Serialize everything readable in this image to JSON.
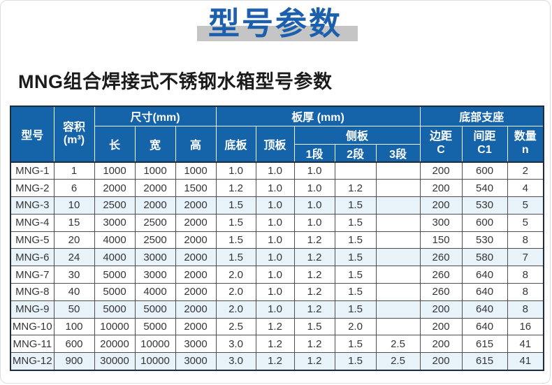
{
  "page": {
    "title": "型号参数",
    "subtitle": "MNG组合焊接式不锈钢水箱型号参数"
  },
  "colors": {
    "title_blue": "#1c5fad",
    "title_shadow_gray": "#c5c5c5",
    "header_blue": "#1563a9",
    "alt_row_tint": "#e8f2f9",
    "grid_line": "#4e4e4e",
    "outer_border": "#1e2c3f"
  },
  "table": {
    "header": {
      "model": "型号",
      "volume_l1": "容积",
      "volume_l2": "(m³)",
      "size_group": "尺寸(mm)",
      "len": "长",
      "wid": "宽",
      "hei": "高",
      "thickness_group": "板厚 (mm)",
      "bottom_plate": "底板",
      "top_plate": "顶板",
      "side_plate": "侧板",
      "seg1": "1段",
      "seg2": "2段",
      "seg3": "3段",
      "support_group": "底部支座",
      "edge_l1": "边距",
      "edge_l2": "C",
      "spacing_l1": "间距",
      "spacing_l2": "C1",
      "qty_l1": "数量",
      "qty_l2": "n"
    },
    "rows": [
      [
        "MNG-1",
        "1",
        "1000",
        "1000",
        "1000",
        "1.0",
        "1.0",
        "1.0",
        "",
        "",
        "200",
        "600",
        "2"
      ],
      [
        "MNG-2",
        "6",
        "2000",
        "2000",
        "1500",
        "1.2",
        "1.0",
        "1.0",
        "1.2",
        "",
        "200",
        "540",
        "4"
      ],
      [
        "MNG-3",
        "10",
        "2500",
        "2000",
        "2000",
        "1.5",
        "1.0",
        "1.0",
        "1.5",
        "",
        "200",
        "530",
        "5"
      ],
      [
        "MNG-4",
        "15",
        "3000",
        "2500",
        "2000",
        "1.5",
        "1.0",
        "1.0",
        "1.5",
        "",
        "300",
        "600",
        "5"
      ],
      [
        "MNG-5",
        "20",
        "4000",
        "2500",
        "2000",
        "1.5",
        "1.0",
        "1.2",
        "1.5",
        "",
        "150",
        "530",
        "8"
      ],
      [
        "MNG-6",
        "24",
        "4000",
        "3000",
        "2000",
        "1.5",
        "1.0",
        "1.2",
        "1.5",
        "",
        "260",
        "580",
        "7"
      ],
      [
        "MNG-7",
        "30",
        "5000",
        "3000",
        "2000",
        "2.0",
        "1.0",
        "1.2",
        "1.5",
        "",
        "260",
        "640",
        "8"
      ],
      [
        "MNG-8",
        "40",
        "5000",
        "4000",
        "2000",
        "2.0",
        "1.0",
        "1.2",
        "1.5",
        "",
        "260",
        "640",
        "8"
      ],
      [
        "MNG-9",
        "50",
        "5000",
        "5000",
        "2000",
        "2.0",
        "1.0",
        "1.2",
        "1.5",
        "",
        "200",
        "640",
        "8"
      ],
      [
        "MNG-10",
        "100",
        "10000",
        "5000",
        "2000",
        "2.5",
        "1.2",
        "1.5",
        "2.0",
        "",
        "200",
        "640",
        "16"
      ],
      [
        "MNG-11",
        "600",
        "20000",
        "10000",
        "3000",
        "3.0",
        "1.2",
        "1.2",
        "1.5",
        "2.5",
        "200",
        "615",
        "41"
      ],
      [
        "MNG-12",
        "900",
        "30000",
        "10000",
        "3000",
        "3.0",
        "1.2",
        "1.2",
        "1.5",
        "2.5",
        "200",
        "615",
        "41"
      ]
    ],
    "highlighted_rows": [
      2,
      5,
      8,
      11
    ]
  }
}
